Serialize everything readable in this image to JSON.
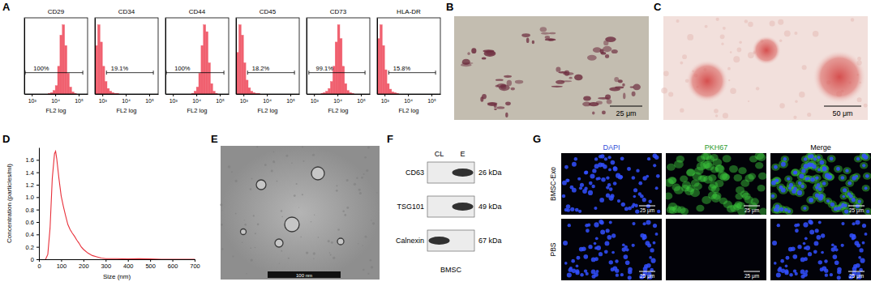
{
  "chart_data": [
    {
      "type": "histogram",
      "title": "CD29",
      "x_label": "FL2 log",
      "log": "x",
      "tick_labels": "x",
      "color": "#f0606f",
      "xlim": [
        480,
        240000
      ],
      "ylim": [
        0,
        110
      ],
      "xticks": [
        {
          "value": 1000,
          "label": "10³"
        },
        {
          "value": 10000,
          "label": "10⁴"
        },
        {
          "value": 100000,
          "label": "10⁵"
        }
      ],
      "bins": [
        501,
        631,
        794,
        1000,
        1259,
        1585,
        1995,
        2512,
        3162,
        3981,
        5012,
        6310,
        7943,
        10000,
        12589,
        15849,
        19953,
        25119,
        31623,
        39811,
        50119,
        63096,
        79433,
        100000,
        125893,
        158489,
        199526,
        251189
      ],
      "counts": [
        0,
        0,
        0,
        0,
        0,
        0,
        0,
        0,
        0,
        0,
        1,
        2,
        5,
        12,
        40,
        85,
        100,
        70,
        30,
        10,
        3,
        1,
        0,
        0,
        0,
        0,
        0
      ],
      "gate": [
        520,
        150000
      ],
      "gate_label": "100%"
    },
    {
      "type": "histogram",
      "title": "CD34",
      "x_label": "FL2 log",
      "log": "x",
      "tick_labels": "x",
      "color": "#f0606f",
      "xlim": [
        480,
        240000
      ],
      "ylim": [
        0,
        110
      ],
      "xticks": [
        {
          "value": 1000,
          "label": "10³"
        },
        {
          "value": 10000,
          "label": "10⁴"
        },
        {
          "value": 100000,
          "label": "10⁵"
        }
      ],
      "bins": [
        501,
        631,
        794,
        1000,
        1259,
        1585,
        1995,
        2512,
        3162,
        3981,
        5012,
        6310,
        7943,
        10000,
        12589,
        15849,
        19953,
        25119,
        31623,
        39811,
        50119,
        63096,
        79433,
        100000,
        125893,
        158489,
        199526,
        251189
      ],
      "counts": [
        70,
        100,
        75,
        40,
        18,
        8,
        4,
        2,
        1,
        1,
        0,
        0,
        0,
        0,
        0,
        0,
        0,
        0,
        0,
        0,
        0,
        0,
        0,
        0,
        0,
        0,
        0
      ],
      "gate": [
        1500,
        150000
      ],
      "gate_label": "19.1%"
    },
    {
      "type": "histogram",
      "title": "CD44",
      "x_label": "FL2 log",
      "log": "x",
      "tick_labels": "x",
      "color": "#f0606f",
      "xlim": [
        480,
        240000
      ],
      "ylim": [
        0,
        110
      ],
      "xticks": [
        {
          "value": 1000,
          "label": "10³"
        },
        {
          "value": 10000,
          "label": "10⁴"
        },
        {
          "value": 100000,
          "label": "10⁵"
        }
      ],
      "bins": [
        501,
        631,
        794,
        1000,
        1259,
        1585,
        1995,
        2512,
        3162,
        3981,
        5012,
        6310,
        7943,
        10000,
        12589,
        15849,
        19953,
        25119,
        31623,
        39811,
        50119,
        63096,
        79433,
        100000,
        125893,
        158489,
        199526,
        251189
      ],
      "counts": [
        0,
        0,
        0,
        0,
        0,
        0,
        0,
        0,
        0,
        0,
        0,
        1,
        4,
        10,
        30,
        70,
        100,
        90,
        45,
        15,
        4,
        1,
        0,
        0,
        0,
        0,
        0
      ],
      "gate": [
        520,
        150000
      ],
      "gate_label": "100%"
    },
    {
      "type": "histogram",
      "title": "CD45",
      "x_label": "FL2 log",
      "log": "x",
      "tick_labels": "x",
      "color": "#f0606f",
      "xlim": [
        480,
        240000
      ],
      "ylim": [
        0,
        110
      ],
      "xticks": [
        {
          "value": 1000,
          "label": "10³"
        },
        {
          "value": 10000,
          "label": "10⁴"
        },
        {
          "value": 100000,
          "label": "10⁵"
        }
      ],
      "bins": [
        501,
        631,
        794,
        1000,
        1259,
        1585,
        1995,
        2512,
        3162,
        3981,
        5012,
        6310,
        7943,
        10000,
        12589,
        15849,
        19953,
        25119,
        31623,
        39811,
        50119,
        63096,
        79433,
        100000,
        125893,
        158489,
        199526,
        251189
      ],
      "counts": [
        60,
        100,
        85,
        45,
        20,
        9,
        4,
        2,
        1,
        1,
        0,
        0,
        0,
        0,
        0,
        0,
        0,
        0,
        0,
        0,
        0,
        0,
        0,
        0,
        0,
        0,
        0
      ],
      "gate": [
        1500,
        150000
      ],
      "gate_label": "18.2%"
    },
    {
      "type": "histogram",
      "title": "CD73",
      "x_label": "FL2 log",
      "log": "x",
      "tick_labels": "x",
      "color": "#f0606f",
      "xlim": [
        480,
        240000
      ],
      "ylim": [
        0,
        110
      ],
      "xticks": [
        {
          "value": 1000,
          "label": "10³"
        },
        {
          "value": 10000,
          "label": "10⁴"
        },
        {
          "value": 100000,
          "label": "10⁵"
        }
      ],
      "bins": [
        501,
        631,
        794,
        1000,
        1259,
        1585,
        1995,
        2512,
        3162,
        3981,
        5012,
        6310,
        7943,
        10000,
        12589,
        15849,
        19953,
        25119,
        31623,
        39811,
        50119,
        63096,
        79433,
        100000,
        125893,
        158489,
        199526,
        251189
      ],
      "counts": [
        0,
        0,
        0,
        0,
        0,
        0,
        1,
        2,
        4,
        8,
        18,
        40,
        75,
        100,
        80,
        40,
        15,
        5,
        2,
        1,
        0,
        0,
        0,
        0,
        0,
        0,
        0
      ],
      "gate": [
        600,
        150000
      ],
      "gate_label": "99.1%"
    },
    {
      "type": "histogram",
      "title": "HLA-DR",
      "x_label": "FL2 log",
      "log": "x",
      "tick_labels": "x",
      "color": "#f0606f",
      "xlim": [
        480,
        240000
      ],
      "ylim": [
        0,
        110
      ],
      "xticks": [
        {
          "value": 1000,
          "label": "10³"
        },
        {
          "value": 10000,
          "label": "10⁴"
        },
        {
          "value": 100000,
          "label": "10⁵"
        }
      ],
      "bins": [
        501,
        631,
        794,
        1000,
        1259,
        1585,
        1995,
        2512,
        3162,
        3981,
        5012,
        6310,
        7943,
        10000,
        12589,
        15849,
        19953,
        25119,
        31623,
        39811,
        50119,
        63096,
        79433,
        100000,
        125893,
        158489,
        199526,
        251189
      ],
      "counts": [
        80,
        100,
        70,
        35,
        15,
        7,
        3,
        2,
        1,
        0,
        0,
        0,
        0,
        0,
        0,
        0,
        0,
        0,
        0,
        0,
        0,
        0,
        0,
        0,
        0,
        0,
        0
      ],
      "gate": [
        1500,
        150000
      ],
      "gate_label": "15.8%"
    },
    {
      "type": "line",
      "x_label": "Size (nm)",
      "y_label": "Concentration (particles/ml)",
      "color": "#e8303a",
      "xlim": [
        0,
        700
      ],
      "ylim": [
        0,
        1.8
      ],
      "xticks": [
        0,
        100,
        200,
        300,
        400,
        500,
        600,
        700
      ],
      "yticks": [
        0,
        0.2,
        0.4,
        0.6,
        0.8,
        {
          "value": 1,
          "label": "1.0"
        },
        1.2,
        1.4,
        1.6
      ],
      "x": [
        30,
        40,
        50,
        60,
        70,
        75,
        80,
        90,
        100,
        110,
        120,
        130,
        140,
        150,
        160,
        170,
        180,
        190,
        200,
        220,
        240,
        260,
        280,
        300,
        350,
        400,
        450,
        500,
        550,
        600,
        650,
        700
      ],
      "values": [
        0,
        0.08,
        0.5,
        1.3,
        1.7,
        1.74,
        1.62,
        1.3,
        1.02,
        0.85,
        0.7,
        0.56,
        0.48,
        0.42,
        0.37,
        0.31,
        0.26,
        0.2,
        0.16,
        0.1,
        0.06,
        0.04,
        0.02,
        0.01,
        0.01,
        0.005,
        0.01,
        0.005,
        0,
        0,
        0,
        0
      ]
    }
  ],
  "panel_labels": [
    "A",
    "B",
    "C",
    "D",
    "E",
    "F",
    "G"
  ],
  "micrographs": {
    "B": {
      "scale_bar": "25 μm"
    },
    "C": {
      "scale_bar": "50 μm"
    },
    "E": {
      "scale_bar": "100 nm"
    }
  },
  "western_blot": {
    "columns": [
      "CL",
      "E"
    ],
    "rows": [
      {
        "name": "CD63",
        "size": "26 kDa",
        "bands": [
          false,
          true
        ]
      },
      {
        "name": "TSG101",
        "size": "49 kDa",
        "bands": [
          false,
          true
        ]
      },
      {
        "name": "Calnexin",
        "size": "67 kDa",
        "bands": [
          true,
          false
        ]
      }
    ],
    "sample": "BMSC"
  },
  "fluorescence": {
    "columns": [
      "DAPI",
      "PKH67",
      "Merge"
    ],
    "rows": [
      "BMSC-Exo",
      "PBS"
    ],
    "green": [
      true,
      false
    ],
    "scale_bar": "25 μm"
  }
}
